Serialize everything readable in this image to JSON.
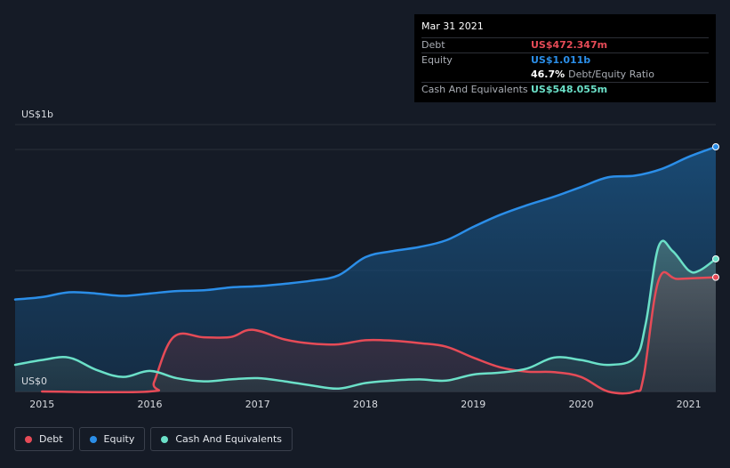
{
  "chart_data": {
    "type": "area",
    "ylabel_top": "US$1b",
    "ylabel_bottom": "US$0",
    "ylim": [
      0,
      1.1
    ],
    "xlim": [
      2014.75,
      2021.25
    ],
    "x_ticks": [
      "2015",
      "2016",
      "2017",
      "2018",
      "2019",
      "2020",
      "2021"
    ],
    "series": [
      {
        "name": "Equity",
        "color": "#2b8ee8",
        "points": [
          [
            2014.75,
            0.38
          ],
          [
            2015.0,
            0.39
          ],
          [
            2015.25,
            0.41
          ],
          [
            2015.5,
            0.405
          ],
          [
            2015.75,
            0.395
          ],
          [
            2016.0,
            0.405
          ],
          [
            2016.25,
            0.415
          ],
          [
            2016.5,
            0.418
          ],
          [
            2016.75,
            0.43
          ],
          [
            2017.0,
            0.435
          ],
          [
            2017.25,
            0.445
          ],
          [
            2017.5,
            0.458
          ],
          [
            2017.75,
            0.48
          ],
          [
            2018.0,
            0.555
          ],
          [
            2018.25,
            0.58
          ],
          [
            2018.5,
            0.597
          ],
          [
            2018.75,
            0.625
          ],
          [
            2019.0,
            0.68
          ],
          [
            2019.25,
            0.73
          ],
          [
            2019.5,
            0.77
          ],
          [
            2019.75,
            0.805
          ],
          [
            2020.0,
            0.845
          ],
          [
            2020.25,
            0.885
          ],
          [
            2020.5,
            0.892
          ],
          [
            2020.75,
            0.92
          ],
          [
            2021.0,
            0.97
          ],
          [
            2021.25,
            1.011
          ]
        ]
      },
      {
        "name": "Debt",
        "color": "#e64b57",
        "points": [
          [
            2015.0,
            0.0
          ],
          [
            2016.0,
            0.0
          ],
          [
            2016.04,
            0.04
          ],
          [
            2016.22,
            0.225
          ],
          [
            2016.5,
            0.224
          ],
          [
            2016.75,
            0.225
          ],
          [
            2016.95,
            0.255
          ],
          [
            2017.25,
            0.215
          ],
          [
            2017.5,
            0.198
          ],
          [
            2017.75,
            0.195
          ],
          [
            2018.0,
            0.212
          ],
          [
            2018.25,
            0.21
          ],
          [
            2018.5,
            0.2
          ],
          [
            2018.75,
            0.185
          ],
          [
            2019.0,
            0.14
          ],
          [
            2019.25,
            0.1
          ],
          [
            2019.5,
            0.082
          ],
          [
            2019.75,
            0.08
          ],
          [
            2020.0,
            0.06
          ],
          [
            2020.25,
            0.0
          ],
          [
            2020.5,
            0.0
          ],
          [
            2020.58,
            0.06
          ],
          [
            2020.72,
            0.46
          ],
          [
            2020.9,
            0.465
          ],
          [
            2021.25,
            0.472
          ]
        ]
      },
      {
        "name": "Cash And Equivalents",
        "color": "#6be0c8",
        "points": [
          [
            2014.75,
            0.11
          ],
          [
            2015.0,
            0.13
          ],
          [
            2015.25,
            0.14
          ],
          [
            2015.5,
            0.09
          ],
          [
            2015.75,
            0.06
          ],
          [
            2016.0,
            0.085
          ],
          [
            2016.25,
            0.055
          ],
          [
            2016.5,
            0.042
          ],
          [
            2016.75,
            0.05
          ],
          [
            2017.0,
            0.055
          ],
          [
            2017.25,
            0.042
          ],
          [
            2017.5,
            0.025
          ],
          [
            2017.75,
            0.012
          ],
          [
            2018.0,
            0.035
          ],
          [
            2018.25,
            0.045
          ],
          [
            2018.5,
            0.05
          ],
          [
            2018.75,
            0.045
          ],
          [
            2019.0,
            0.07
          ],
          [
            2019.25,
            0.078
          ],
          [
            2019.5,
            0.095
          ],
          [
            2019.75,
            0.14
          ],
          [
            2020.0,
            0.13
          ],
          [
            2020.25,
            0.11
          ],
          [
            2020.5,
            0.14
          ],
          [
            2020.6,
            0.28
          ],
          [
            2020.72,
            0.6
          ],
          [
            2020.85,
            0.58
          ],
          [
            2021.0,
            0.5
          ],
          [
            2021.1,
            0.5
          ],
          [
            2021.25,
            0.548
          ]
        ]
      }
    ]
  },
  "tooltip": {
    "date": "Mar 31 2021",
    "debt_label": "Debt",
    "debt_value": "US$472.347m",
    "equity_label": "Equity",
    "equity_value": "US$1.011b",
    "ratio_value": "46.7%",
    "ratio_label": "Debt/Equity Ratio",
    "cash_label": "Cash And Equivalents",
    "cash_value": "US$548.055m"
  },
  "legend": [
    {
      "label": "Debt",
      "color": "#e64b57"
    },
    {
      "label": "Equity",
      "color": "#2b8ee8"
    },
    {
      "label": "Cash And Equivalents",
      "color": "#6be0c8"
    }
  ]
}
